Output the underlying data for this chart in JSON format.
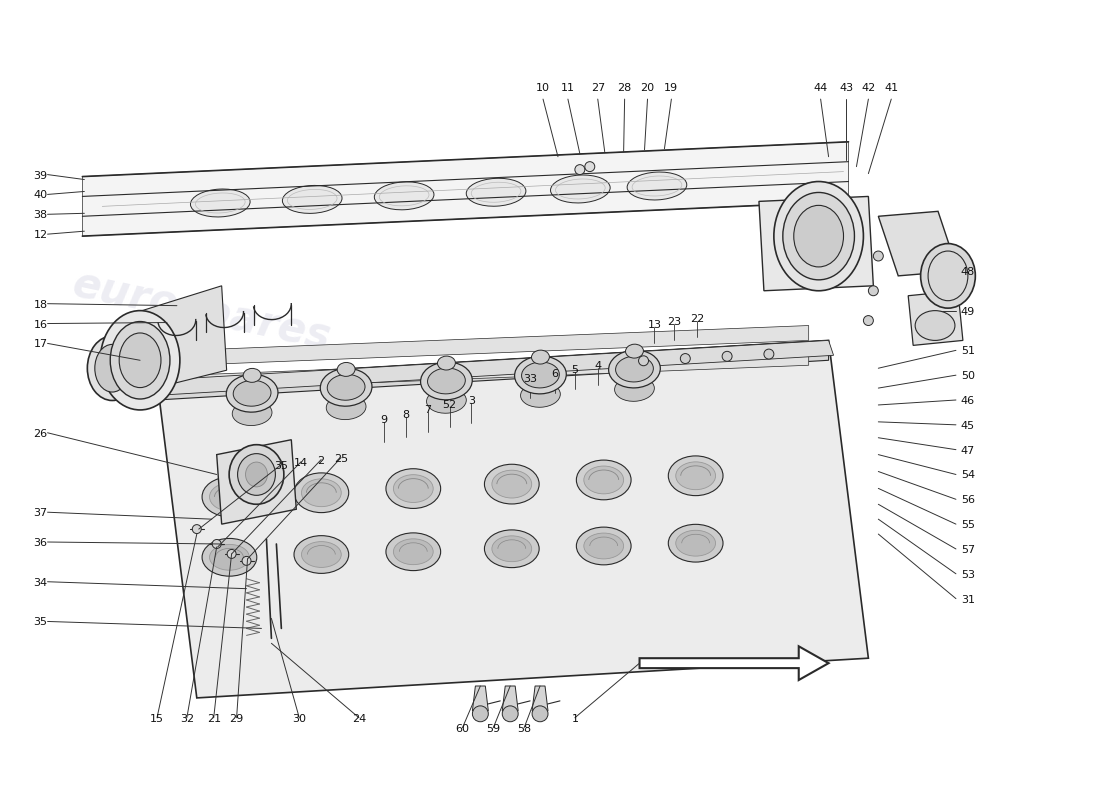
{
  "bg_color": "#ffffff",
  "line_color": "#2a2a2a",
  "label_color": "#111111",
  "watermark_color": "#dcdce8",
  "watermark_text": "eurospares",
  "fig_width": 11.0,
  "fig_height": 8.0,
  "dpi": 100,
  "label_fs": 8.0
}
